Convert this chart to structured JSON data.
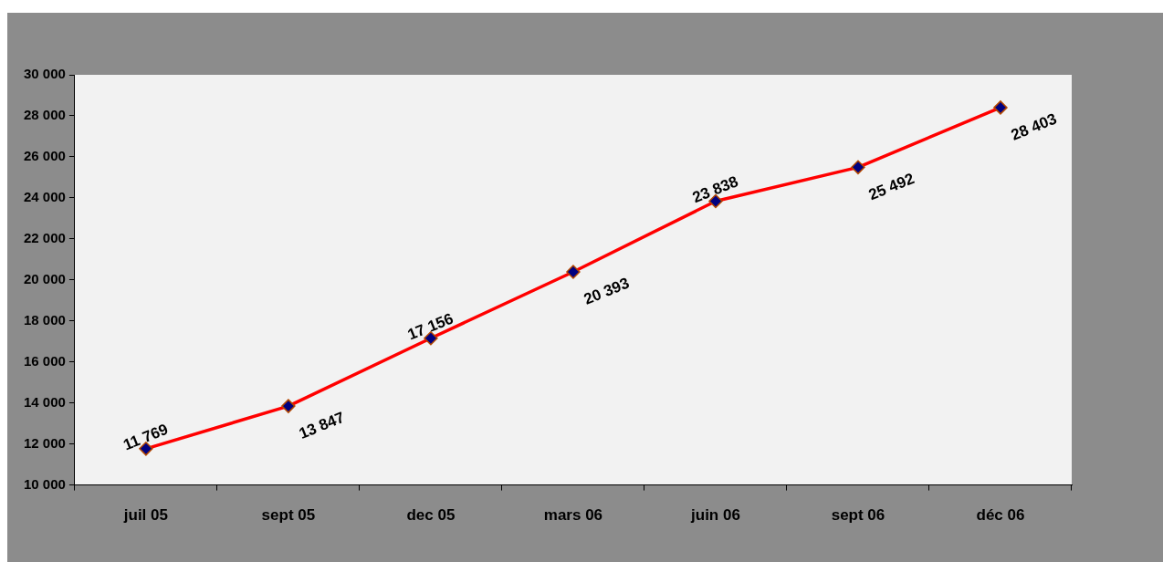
{
  "chart_data": {
    "type": "line",
    "categories": [
      "juil 05",
      "sept 05",
      "dec 05",
      "mars 06",
      "juin 06",
      "sept 06",
      "déc 06"
    ],
    "series": [
      {
        "color": "#ff0000",
        "values": [
          11769,
          13847,
          17156,
          20393,
          23838,
          25492,
          28403
        ],
        "value_labels": [
          "11 769",
          "13 847",
          "17 156",
          "20 393",
          "23 838",
          "25 492",
          "28 403"
        ]
      }
    ],
    "ylim": [
      10000,
      30000
    ],
    "yticks": [
      {
        "value": 10000,
        "label": "10 000"
      },
      {
        "value": 12000,
        "label": "12 000"
      },
      {
        "value": 14000,
        "label": "14 000"
      },
      {
        "value": 16000,
        "label": "16 000"
      },
      {
        "value": 18000,
        "label": "18 000"
      },
      {
        "value": 20000,
        "label": "20 000"
      },
      {
        "value": 22000,
        "label": "22 000"
      },
      {
        "value": 24000,
        "label": "24 000"
      },
      {
        "value": 26000,
        "label": "26 000"
      },
      {
        "value": 28000,
        "label": "28 000"
      },
      {
        "value": 30000,
        "label": "30 000"
      }
    ],
    "marker": "diamond",
    "line_style": "solid",
    "grid": false,
    "legend": false
  }
}
